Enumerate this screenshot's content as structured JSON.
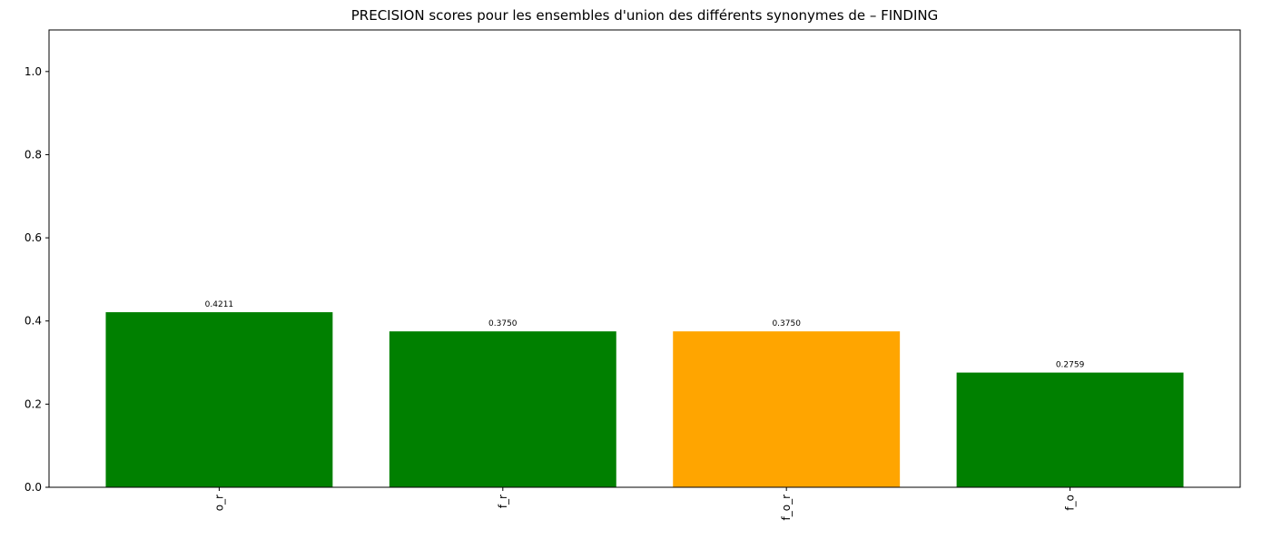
{
  "chart_data": {
    "type": "bar",
    "title": "PRECISION scores pour les ensembles d'union des différents synonymes de – FINDING",
    "xlabel": "",
    "ylabel": "",
    "categories": [
      "o_r",
      "f_r",
      "f_o_r",
      "f_o"
    ],
    "values": [
      0.4211,
      0.375,
      0.375,
      0.2759
    ],
    "value_labels": [
      "0.4211",
      "0.3750",
      "0.3750",
      "0.2759"
    ],
    "bar_colors": [
      "#008000",
      "#008000",
      "#ffa500",
      "#008000"
    ],
    "ylim": [
      0,
      1.1
    ],
    "yticks": [
      0.0,
      0.2,
      0.4,
      0.6,
      0.8,
      1.0
    ],
    "ytick_labels": [
      "0.0",
      "0.2",
      "0.4",
      "0.6",
      "0.8",
      "1.0"
    ],
    "xtick_rotation": "vertical",
    "grid": false,
    "legend": "none"
  }
}
